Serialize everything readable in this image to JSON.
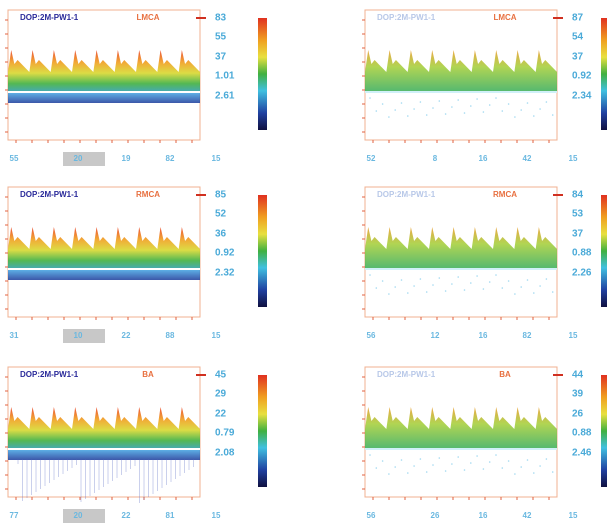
{
  "panels": [
    {
      "label": "DOP:2M-PW1-1",
      "vessel": "LMCA",
      "metrics": [
        "83",
        "55",
        "37",
        "1.01",
        "2.61"
      ],
      "footer": [
        "55",
        "20",
        "19",
        "82",
        "15"
      ]
    },
    {
      "label": "DOP:2M-PW1-1",
      "vessel": "LMCA",
      "metrics": [
        "87",
        "54",
        "37",
        "0.92",
        "2.34"
      ],
      "footer": [
        "52",
        "8",
        "16",
        "42",
        "15"
      ]
    },
    {
      "label": "DOP:2M-PW1-1",
      "vessel": "RMCA",
      "metrics": [
        "85",
        "52",
        "36",
        "0.92",
        "2.32"
      ],
      "footer": [
        "31",
        "10",
        "22",
        "88",
        "15"
      ]
    },
    {
      "label": "DOP:2M-PW1-1",
      "vessel": "RMCA",
      "metrics": [
        "84",
        "53",
        "37",
        "0.88",
        "2.26"
      ],
      "footer": [
        "56",
        "12",
        "16",
        "82",
        "15"
      ]
    },
    {
      "label": "DOP:2M-PW1-1",
      "vessel": "BA",
      "metrics": [
        "45",
        "29",
        "22",
        "0.79",
        "2.08"
      ],
      "footer": [
        "77",
        "20",
        "22",
        "81",
        "15"
      ]
    },
    {
      "label": "DOP:2M-PW1-1",
      "vessel": "BA",
      "metrics": [
        "44",
        "39",
        "26",
        "0.88",
        "2.46"
      ],
      "footer": [
        "56",
        "26",
        "16",
        "42",
        "15"
      ]
    }
  ]
}
